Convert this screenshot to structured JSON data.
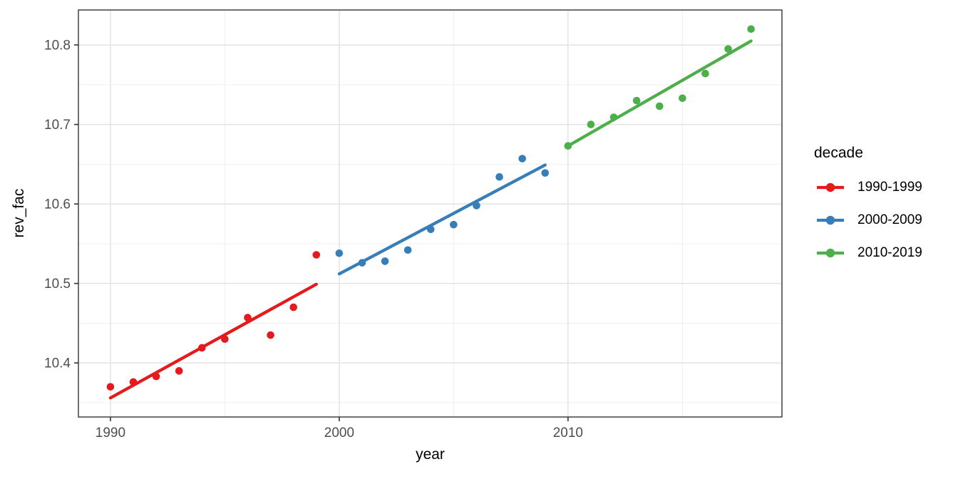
{
  "chart_data": {
    "type": "scatter",
    "title": "",
    "xlabel": "year",
    "ylabel": "rev_fac",
    "grid": true,
    "legend_position": "right",
    "legend_title": "decade",
    "xlim": [
      1988.6,
      2019.35
    ],
    "ylim": [
      10.332,
      10.844
    ],
    "x_ticks": [
      1990,
      2000,
      2010
    ],
    "x_tick_labels": [
      "1990",
      "2000",
      "2010"
    ],
    "x_minor_ticks": [
      1995,
      2005,
      2015
    ],
    "y_ticks": [
      10.4,
      10.5,
      10.6,
      10.7,
      10.8
    ],
    "y_tick_labels": [
      "10.4",
      "10.5",
      "10.6",
      "10.7",
      "10.8"
    ],
    "y_minor_ticks": [
      10.35,
      10.45,
      10.55,
      10.65,
      10.75
    ],
    "colors": {
      "grid_major": "#e3e3e3",
      "grid_minor": "#efefef",
      "panel_border": "#333333",
      "tick_mark": "#333333",
      "tick_label": "#4d4d4d"
    },
    "series": [
      {
        "name": "1990-1999",
        "color": "#E41A1C",
        "x": [
          1990,
          1991,
          1992,
          1993,
          1994,
          1995,
          1996,
          1997,
          1998,
          1999
        ],
        "y": [
          10.37,
          10.376,
          10.383,
          10.39,
          10.419,
          10.43,
          10.457,
          10.435,
          10.47,
          10.536
        ],
        "trend": {
          "x1": 1990,
          "y1": 10.356,
          "x2": 1999,
          "y2": 10.499
        }
      },
      {
        "name": "2000-2009",
        "color": "#377EB8",
        "x": [
          2000,
          2001,
          2002,
          2003,
          2004,
          2005,
          2006,
          2007,
          2008,
          2009
        ],
        "y": [
          10.538,
          10.526,
          10.528,
          10.542,
          10.568,
          10.574,
          10.598,
          10.634,
          10.657,
          10.639
        ],
        "trend": {
          "x1": 2000,
          "y1": 10.512,
          "x2": 2009,
          "y2": 10.649
        }
      },
      {
        "name": "2010-2019",
        "color": "#4DAF4A",
        "x": [
          2010,
          2011,
          2012,
          2013,
          2014,
          2015,
          2016,
          2017,
          2018
        ],
        "y": [
          10.673,
          10.7,
          10.709,
          10.73,
          10.723,
          10.733,
          10.764,
          10.795,
          10.82
        ],
        "trend": {
          "x1": 2010,
          "y1": 10.673,
          "x2": 2018,
          "y2": 10.805
        }
      }
    ]
  }
}
